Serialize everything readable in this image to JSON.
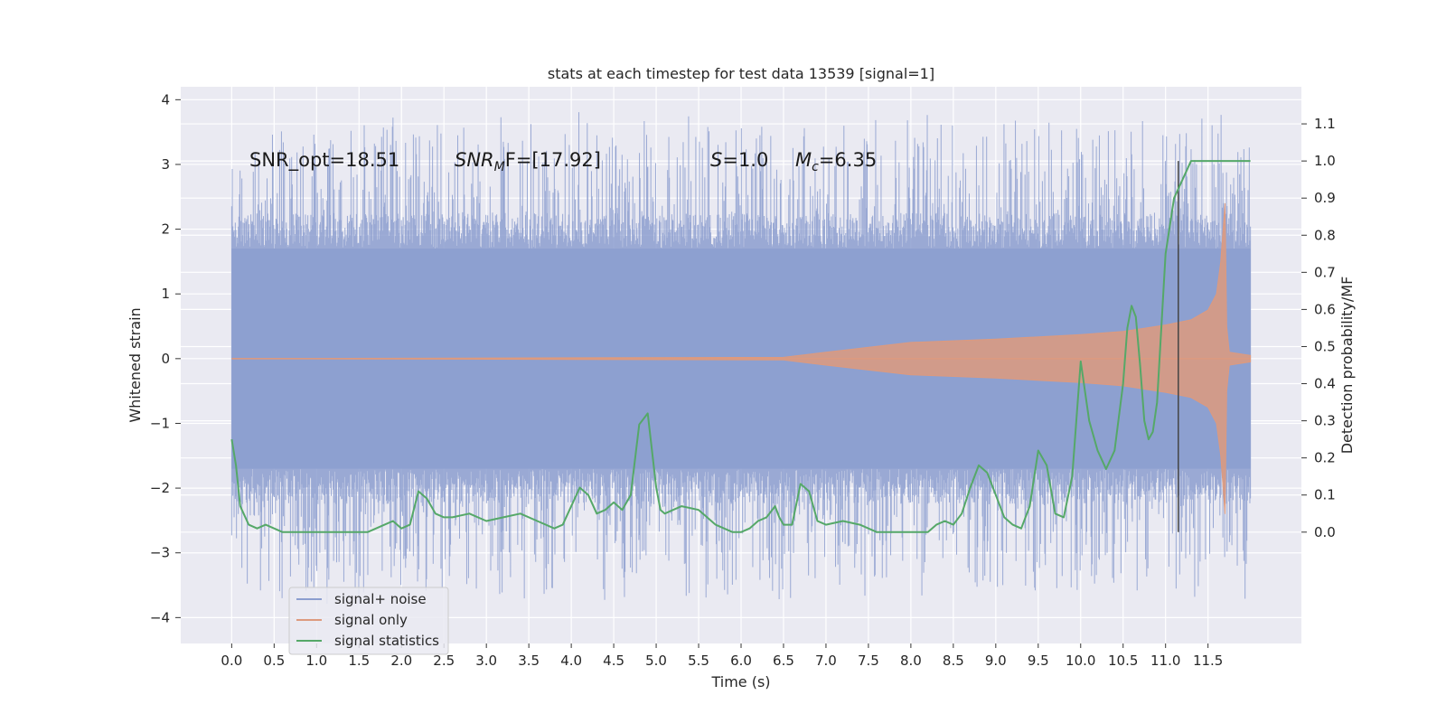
{
  "chart_data": {
    "type": "line",
    "title": "stats at each timestep for test data 13539 [signal=1]",
    "xlabel": "Time (s)",
    "ylabel": "Whitened strain",
    "y2label": "Detection probability/MF",
    "xlim": [
      -0.6,
      12.6
    ],
    "ylim": [
      -4.4,
      4.2
    ],
    "y2lim": [
      -0.3,
      1.2
    ],
    "x_ticks": [
      "0.0",
      "0.5",
      "1.0",
      "1.5",
      "2.0",
      "2.5",
      "3.0",
      "3.5",
      "4.0",
      "4.5",
      "5.0",
      "5.5",
      "6.0",
      "6.5",
      "7.0",
      "7.5",
      "8.0",
      "8.5",
      "9.0",
      "9.5",
      "10.0",
      "10.5",
      "11.0",
      "11.5"
    ],
    "y_ticks": [
      "4",
      "3",
      "2",
      "1",
      "0",
      "−1",
      "−2",
      "−3",
      "−4"
    ],
    "y2_ticks": [
      "0.0",
      "0.1",
      "0.2",
      "0.3",
      "0.4",
      "0.5",
      "0.6",
      "0.7",
      "0.8",
      "0.9",
      "1.0",
      "1.1"
    ],
    "annotations": {
      "snr_opt": "SNR_opt=18.51",
      "snr_mf_sym": "SNR",
      "snr_mf_sub": "M",
      "snr_mf_tail": "F=[17.92]",
      "s_sym": "S",
      "s_val": "=1.0",
      "mc_sym": "M",
      "mc_sub": "c",
      "mc_val": "=6.35"
    },
    "vline_x": 11.15,
    "series": [
      {
        "name": "signal+ noise",
        "color": "#8c9ecf",
        "amplitude_envelope": {
          "base": 1.7,
          "max_peak": 3.8,
          "t_start": 0.0,
          "t_end": 12.0
        }
      },
      {
        "name": "signal only",
        "color": "#dd9a7e",
        "x": [
          0.0,
          6.5,
          7.0,
          8.0,
          9.0,
          10.0,
          10.5,
          11.0,
          11.3,
          11.5,
          11.6,
          11.65,
          11.7,
          11.72,
          11.75,
          12.0
        ],
        "envelope": [
          0.0,
          0.02,
          0.1,
          0.25,
          0.3,
          0.37,
          0.42,
          0.52,
          0.6,
          0.75,
          1.0,
          1.5,
          2.4,
          0.5,
          0.1,
          0.05
        ]
      },
      {
        "name": "signal statistics",
        "color": "#55a868",
        "x": [
          0.0,
          0.05,
          0.1,
          0.2,
          0.3,
          0.4,
          0.6,
          0.8,
          1.0,
          1.2,
          1.4,
          1.6,
          1.8,
          1.9,
          2.0,
          2.1,
          2.2,
          2.3,
          2.4,
          2.5,
          2.6,
          2.8,
          3.0,
          3.2,
          3.4,
          3.6,
          3.8,
          3.9,
          4.0,
          4.1,
          4.2,
          4.3,
          4.4,
          4.5,
          4.6,
          4.7,
          4.8,
          4.9,
          5.0,
          5.05,
          5.1,
          5.2,
          5.3,
          5.5,
          5.6,
          5.7,
          5.8,
          5.9,
          6.0,
          6.1,
          6.2,
          6.3,
          6.4,
          6.45,
          6.5,
          6.6,
          6.7,
          6.8,
          6.9,
          7.0,
          7.2,
          7.4,
          7.6,
          7.8,
          8.0,
          8.2,
          8.3,
          8.4,
          8.5,
          8.6,
          8.7,
          8.8,
          8.9,
          9.0,
          9.1,
          9.2,
          9.3,
          9.4,
          9.5,
          9.6,
          9.7,
          9.8,
          9.9,
          10.0,
          10.1,
          10.2,
          10.3,
          10.4,
          10.5,
          10.55,
          10.6,
          10.65,
          10.7,
          10.75,
          10.8,
          10.85,
          10.9,
          10.95,
          11.0,
          11.1,
          11.2,
          11.3,
          11.4,
          11.5,
          11.6,
          11.7,
          11.8,
          11.9,
          12.0
        ],
        "y": [
          0.25,
          0.18,
          0.07,
          0.02,
          0.01,
          0.02,
          0.0,
          0.0,
          0.0,
          0.0,
          0.0,
          0.0,
          0.02,
          0.03,
          0.01,
          0.02,
          0.11,
          0.09,
          0.05,
          0.04,
          0.04,
          0.05,
          0.03,
          0.04,
          0.05,
          0.03,
          0.01,
          0.02,
          0.07,
          0.12,
          0.1,
          0.05,
          0.06,
          0.08,
          0.06,
          0.1,
          0.29,
          0.32,
          0.12,
          0.06,
          0.05,
          0.06,
          0.07,
          0.06,
          0.04,
          0.02,
          0.01,
          0.0,
          0.0,
          0.01,
          0.03,
          0.04,
          0.07,
          0.04,
          0.02,
          0.02,
          0.13,
          0.11,
          0.03,
          0.02,
          0.03,
          0.02,
          0.0,
          0.0,
          0.0,
          0.0,
          0.02,
          0.03,
          0.02,
          0.05,
          0.12,
          0.18,
          0.16,
          0.1,
          0.04,
          0.02,
          0.01,
          0.07,
          0.22,
          0.18,
          0.05,
          0.04,
          0.15,
          0.46,
          0.3,
          0.22,
          0.17,
          0.22,
          0.4,
          0.55,
          0.61,
          0.58,
          0.45,
          0.3,
          0.25,
          0.27,
          0.35,
          0.55,
          0.75,
          0.9,
          0.95,
          1.0,
          1.0,
          1.0,
          1.0,
          1.0,
          1.0,
          1.0,
          1.0
        ]
      }
    ],
    "legend": {
      "placement": "lower-left",
      "entries": [
        "signal+ noise",
        "signal only",
        "signal statistics"
      ]
    },
    "grid": true
  }
}
